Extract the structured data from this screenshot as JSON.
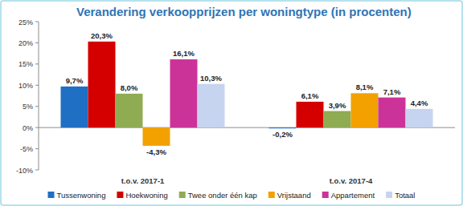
{
  "chart_data": {
    "type": "bar",
    "title": "Verandering verkoopprijzen per woningtype (in procenten)",
    "categories": [
      "t.o.v. 2017-1",
      "t.o.v. 2017-4"
    ],
    "series": [
      {
        "name": "Tussenwoning",
        "color": "#1f6fc4",
        "values": [
          9.7,
          -0.2
        ],
        "value_labels": [
          "9,7%",
          "-0,2%"
        ]
      },
      {
        "name": "Hoekwoning",
        "color": "#d40000",
        "values": [
          20.3,
          6.1
        ],
        "value_labels": [
          "20,3%",
          "6,1%"
        ]
      },
      {
        "name": "Twee onder één kap",
        "color": "#8fac52",
        "values": [
          8.0,
          3.9
        ],
        "value_labels": [
          "8,0%",
          "3,9%"
        ]
      },
      {
        "name": "Vrijstaand",
        "color": "#f2a100",
        "values": [
          -4.3,
          8.1
        ],
        "value_labels": [
          "-4,3%",
          "8,1%"
        ]
      },
      {
        "name": "Appartement",
        "color": "#cc3399",
        "values": [
          16.1,
          7.1
        ],
        "value_labels": [
          "16,1%",
          "7,1%"
        ]
      },
      {
        "name": "Totaal",
        "color": "#c6d4ef",
        "values": [
          10.3,
          4.4
        ],
        "value_labels": [
          "10,3%",
          "4,4%"
        ]
      }
    ],
    "ylim": [
      -10,
      25
    ],
    "yticks": [
      {
        "value": -10,
        "label": "-10%"
      },
      {
        "value": -5,
        "label": "-5%"
      },
      {
        "value": 0,
        "label": "0%"
      },
      {
        "value": 5,
        "label": "5%"
      },
      {
        "value": 10,
        "label": "10%"
      },
      {
        "value": 15,
        "label": "15%"
      },
      {
        "value": 20,
        "label": "20%"
      },
      {
        "value": 25,
        "label": "25%"
      }
    ],
    "grid": false,
    "legend": "bottom",
    "data_labels": true
  }
}
